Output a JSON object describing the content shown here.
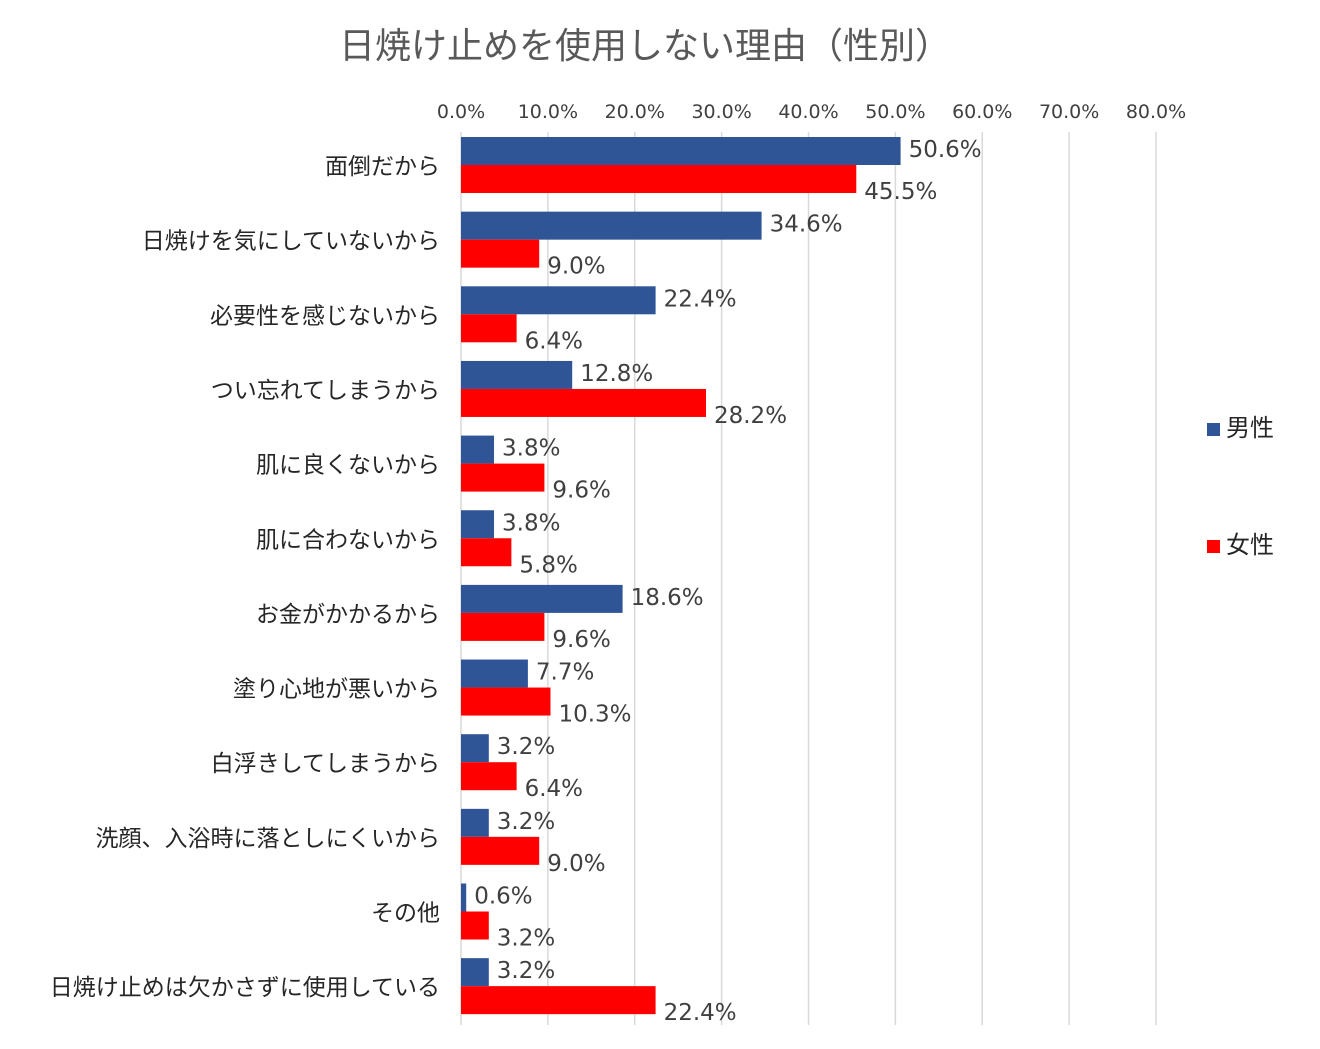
{
  "chart_data": {
    "type": "bar",
    "orientation": "horizontal",
    "title": "日焼け止めを使用しない理由（性別）",
    "xlim": [
      0,
      80
    ],
    "x_tick_labels": [
      "0.0%",
      "10.0%",
      "20.0%",
      "30.0%",
      "40.0%",
      "50.0%",
      "60.0%",
      "70.0%",
      "80.0%"
    ],
    "x_ticks": [
      0,
      10,
      20,
      30,
      40,
      50,
      60,
      70,
      80
    ],
    "grid": true,
    "legend_position": "right",
    "categories": [
      "面倒だから",
      "日焼けを気にしていないから",
      "必要性を感じないから",
      "つい忘れてしまうから",
      "肌に良くないから",
      "肌に合わないから",
      "お金がかかるから",
      "塗り心地が悪いから",
      "白浮きしてしまうから",
      "洗顔、入浴時に落としにくいから",
      "その他",
      "日焼け止めは欠かさずに使用している"
    ],
    "series": [
      {
        "name": "男性",
        "color": "#2F5597",
        "values": [
          50.6,
          34.6,
          22.4,
          12.8,
          3.8,
          3.8,
          18.6,
          7.7,
          3.2,
          3.2,
          0.6,
          3.2
        ],
        "labels": [
          "50.6%",
          "34.6%",
          "22.4%",
          "12.8%",
          "3.8%",
          "3.8%",
          "18.6%",
          "7.7%",
          "3.2%",
          "3.2%",
          "0.6%",
          "3.2%"
        ]
      },
      {
        "name": "女性",
        "color": "#FF0000",
        "values": [
          45.5,
          9.0,
          6.4,
          28.2,
          9.6,
          5.8,
          9.6,
          10.3,
          6.4,
          9.0,
          3.2,
          22.4
        ],
        "labels": [
          "45.5%",
          "9.0%",
          "6.4%",
          "28.2%",
          "9.6%",
          "5.8%",
          "9.6%",
          "10.3%",
          "6.4%",
          "9.0%",
          "3.2%",
          "22.4%"
        ]
      }
    ]
  }
}
